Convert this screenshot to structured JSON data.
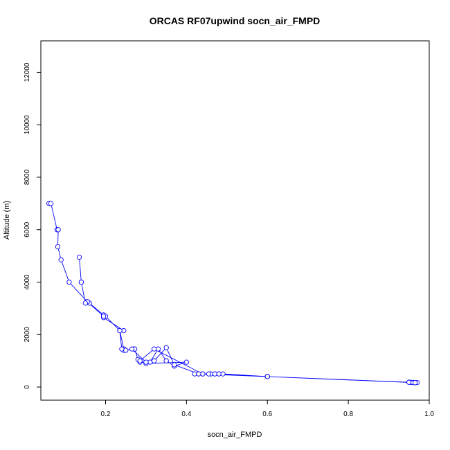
{
  "chart_data": {
    "type": "line",
    "title": "ORCAS RF07upwind socn_air_FMPD",
    "xlabel": "socn_air_FMPD",
    "ylabel": "Altitude (m)",
    "xlim": [
      0.04,
      1.0
    ],
    "ylim": [
      -500,
      13200
    ],
    "xticks": [
      0.2,
      0.4,
      0.6,
      0.8,
      1.0
    ],
    "xtick_labels": [
      "0.2",
      "0.4",
      "0.6",
      "0.8",
      "1.0"
    ],
    "yticks": [
      0,
      2000,
      4000,
      6000,
      8000,
      10000,
      12000
    ],
    "ytick_labels": [
      "0",
      "2000",
      "4000",
      "6000",
      "8000",
      "10000",
      "12000"
    ],
    "grid": false,
    "markers": "open-circle",
    "color": "#0000ff",
    "series": [
      {
        "x": [
          0.06,
          0.065,
          0.08,
          0.083,
          0.082,
          0.09,
          0.11,
          0.155,
          0.16,
          0.195,
          0.195,
          0.245,
          0.235,
          0.245,
          0.245,
          0.27,
          0.272,
          0.28,
          0.285,
          0.31,
          0.33,
          0.35,
          0.37,
          0.4,
          0.3,
          0.285,
          0.32,
          0.44,
          0.46,
          0.6,
          0.95,
          0.96,
          0.97,
          0.965,
          0.96,
          0.955,
          0.95,
          0.6,
          0.49,
          0.48,
          0.47,
          0.455,
          0.44,
          0.42,
          0.43,
          0.47,
          0.48,
          0.6,
          0.95,
          0.96,
          0.965,
          0.6,
          0.43,
          0.37,
          0.35,
          0.32,
          0.3,
          0.265,
          0.25,
          0.24,
          0.235,
          0.2,
          0.195,
          0.155,
          0.15,
          0.14,
          0.14,
          0.135
        ],
        "y": [
          7000,
          7000,
          6000,
          6000,
          5350,
          4850,
          4000,
          3250,
          3200,
          2750,
          2650,
          2150,
          2150,
          1450,
          1400,
          1450,
          1450,
          1050,
          950,
          950,
          1450,
          1000,
          800,
          950,
          900,
          1000,
          1450,
          500,
          500,
          400,
          180,
          175,
          170,
          165,
          170,
          175,
          180,
          400,
          500,
          500,
          500,
          500,
          500,
          500,
          500,
          500,
          500,
          400,
          180,
          170,
          165,
          400,
          500,
          850,
          1500,
          1000,
          950,
          1450,
          1400,
          1450,
          2150,
          2700,
          2700,
          3250,
          3200,
          4000,
          4000,
          4950
        ]
      }
    ]
  }
}
